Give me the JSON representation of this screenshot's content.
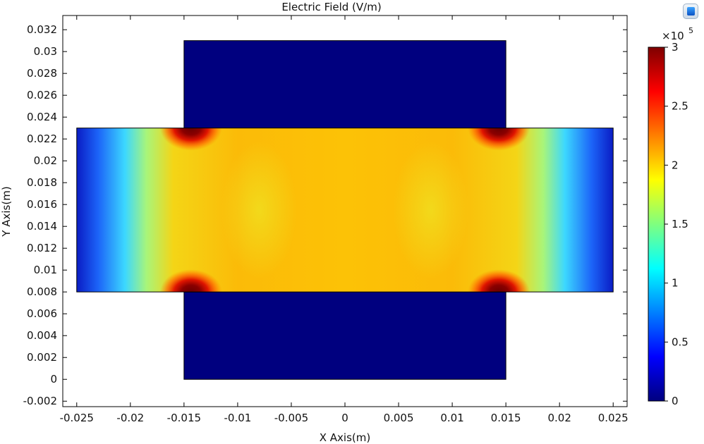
{
  "chart_data": {
    "type": "heatmap",
    "title": "Electric Field (V/m)",
    "xlabel": "X Axis(m)",
    "ylabel": "Y Axis(m)",
    "xlim": [
      -0.0263,
      0.0263
    ],
    "ylim": [
      -0.0025,
      0.0333
    ],
    "x_ticks": [
      -0.025,
      -0.02,
      -0.015,
      -0.01,
      -0.005,
      0,
      0.005,
      0.01,
      0.015,
      0.02,
      0.025
    ],
    "x_tick_labels": [
      "-0.025",
      "-0.02",
      "-0.015",
      "-0.01",
      "-0.005",
      "0",
      "0.005",
      "0.01",
      "0.015",
      "0.02",
      "0.025"
    ],
    "y_ticks": [
      -0.002,
      0,
      0.002,
      0.004,
      0.006,
      0.008,
      0.01,
      0.012,
      0.014,
      0.016,
      0.018,
      0.02,
      0.022,
      0.024,
      0.026,
      0.028,
      0.03,
      0.032
    ],
    "y_tick_labels": [
      "-0.002",
      "0",
      "0.002",
      "0.004",
      "0.006",
      "0.008",
      "0.01",
      "0.012",
      "0.014",
      "0.016",
      "0.018",
      "0.02",
      "0.022",
      "0.024",
      "0.026",
      "0.028",
      "0.03",
      "0.032"
    ],
    "colorbar": {
      "colormap": "jet",
      "range": [
        0,
        300000
      ],
      "multiplier": "×10",
      "exponent": "5",
      "ticks": [
        0,
        0.5,
        1,
        1.5,
        2,
        2.5,
        3
      ],
      "tick_labels": [
        "0",
        "0.5",
        "1",
        "1.5",
        "2",
        "2.5",
        "3"
      ]
    },
    "regions": [
      {
        "x": [
          -0.015,
          0.015
        ],
        "y": [
          0,
          0.008
        ],
        "field": 0
      },
      {
        "x": [
          -0.015,
          0.015
        ],
        "y": [
          0.023,
          0.031
        ],
        "field": 0
      },
      {
        "x": [
          -0.025,
          0.025
        ],
        "y": [
          0.008,
          0.023
        ],
        "field_center": 220000,
        "field_edges": 20000,
        "field_corners_max": 300000
      }
    ],
    "grid": false
  }
}
